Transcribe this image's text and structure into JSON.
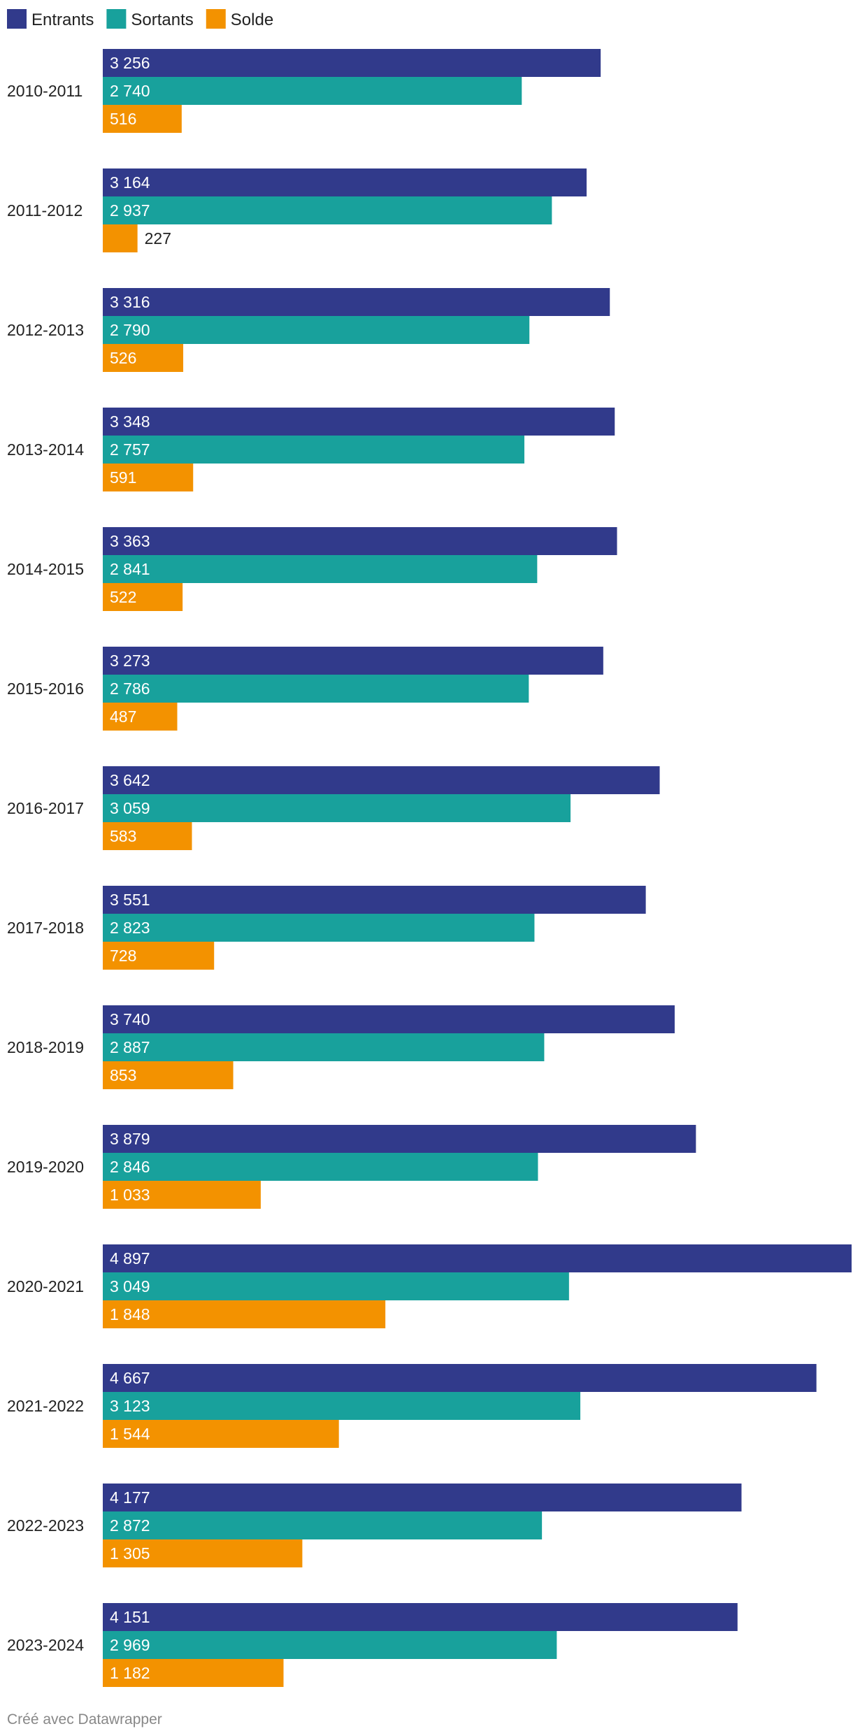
{
  "chart_data": {
    "type": "bar",
    "orientation": "horizontal",
    "categories": [
      "2010-2011",
      "2011-2012",
      "2012-2013",
      "2013-2014",
      "2014-2015",
      "2015-2016",
      "2016-2017",
      "2017-2018",
      "2018-2019",
      "2019-2020",
      "2020-2021",
      "2021-2022",
      "2022-2023",
      "2023-2024"
    ],
    "series": [
      {
        "name": "Entrants",
        "color": "#313a8b",
        "values": [
          3256,
          3164,
          3316,
          3348,
          3363,
          3273,
          3642,
          3551,
          3740,
          3879,
          4897,
          4667,
          4177,
          4151
        ],
        "labels": [
          "3 256",
          "3 164",
          "3 316",
          "3 348",
          "3 363",
          "3 273",
          "3 642",
          "3 551",
          "3 740",
          "3 879",
          "4 897",
          "4 667",
          "4 177",
          "4 151"
        ]
      },
      {
        "name": "Sortants",
        "color": "#18a19c",
        "values": [
          2740,
          2937,
          2790,
          2757,
          2841,
          2786,
          3059,
          2823,
          2887,
          2846,
          3049,
          3123,
          2872,
          2969
        ],
        "labels": [
          "2 740",
          "2 937",
          "2 790",
          "2 757",
          "2 841",
          "2 786",
          "3 059",
          "2 823",
          "2 887",
          "2 846",
          "3 049",
          "3 123",
          "2 872",
          "2 969"
        ]
      },
      {
        "name": "Solde",
        "color": "#f39200",
        "values": [
          516,
          227,
          526,
          591,
          522,
          487,
          583,
          728,
          853,
          1033,
          1848,
          1544,
          1305,
          1182
        ],
        "labels": [
          "516",
          "227",
          "526",
          "591",
          "522",
          "487",
          "583",
          "728",
          "853",
          "1 033",
          "1 848",
          "1 544",
          "1 305",
          "1 182"
        ]
      }
    ],
    "xlim": [
      0,
      4897
    ],
    "legend": "top-left",
    "grid": false
  },
  "footer": "Créé avec Datawrapper"
}
